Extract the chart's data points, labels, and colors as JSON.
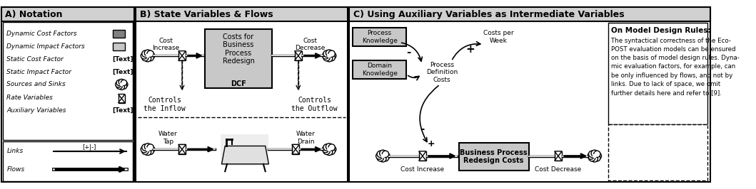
{
  "fig_width": 10.59,
  "fig_height": 2.66,
  "dpi": 100,
  "bg_color": "#ffffff",
  "DARK_GRAY": "#808080",
  "LIGHT_GRAY": "#c8c8c8",
  "SECTION_HEADER_BG": "#d0d0d0",
  "section_A_title": "A) Notation",
  "section_B_title": "B) State Variables & Flows",
  "section_C_title": "C) Using Auxiliary Variables as Intermediate Variables",
  "design_rules_title": "On Model Design Rules:",
  "design_rules_text": "The syntactical correctness of the Eco-\nPOST evaluation models can be ensured\non the basis of model design rules. Dyna-\nmic evaluation factors, for example, can\nbe only influenced by flows, and not by\nlinks. Due to lack of space, we omit\nfurther details here and refer to [9].",
  "legend_labels": [
    "Dynamic Cost Factors",
    "Dynamic Impact Factors",
    "Static Cost Factor",
    "Static Impact Factor",
    "Sources and Sinks",
    "Rate Variables",
    "Auxiliary Variables"
  ],
  "links_label": "Links",
  "flows_label": "Flows"
}
